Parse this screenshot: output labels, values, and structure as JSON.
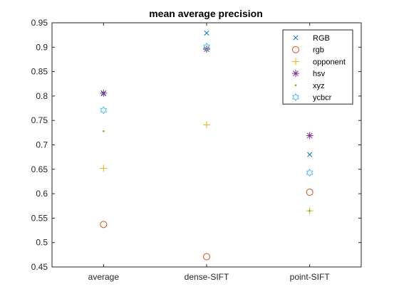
{
  "chart_data": {
    "type": "scatter",
    "title": "mean average precision",
    "xlabel": "",
    "ylabel": "",
    "categories": [
      "average",
      "dense-SIFT",
      "point-SIFT"
    ],
    "xlim": [
      0.5,
      3.5
    ],
    "ylim": [
      0.45,
      0.95
    ],
    "yticks": [
      0.45,
      0.5,
      0.55,
      0.6,
      0.65,
      0.7,
      0.75,
      0.8,
      0.85,
      0.9,
      0.95
    ],
    "ytick_labels": [
      "0.45",
      "0.5",
      "0.55",
      "0.6",
      "0.65",
      "0.7",
      "0.75",
      "0.8",
      "0.85",
      "0.9",
      "0.95"
    ],
    "grid": false,
    "legend_position": "top-right",
    "series": [
      {
        "name": "RGB",
        "marker": "x",
        "color": "#0072BD",
        "values": [
          0.805,
          0.929,
          0.68
        ]
      },
      {
        "name": "rgb",
        "marker": "o",
        "color": "#D95319",
        "values": [
          0.537,
          0.471,
          0.603
        ]
      },
      {
        "name": "opponent",
        "marker": "+",
        "color": "#EDB120",
        "values": [
          0.652,
          0.741,
          0.565
        ]
      },
      {
        "name": "hsv",
        "marker": "*",
        "color": "#7E2F8E",
        "values": [
          0.806,
          0.896,
          0.719
        ]
      },
      {
        "name": "xyz",
        "marker": ".",
        "color": "#77AC30",
        "values": [
          0.728,
          0.893,
          0.565
        ]
      },
      {
        "name": "ycbcr",
        "marker": "hexagram",
        "color": "#4DBEEE",
        "values": [
          0.771,
          0.901,
          0.643
        ]
      }
    ]
  }
}
